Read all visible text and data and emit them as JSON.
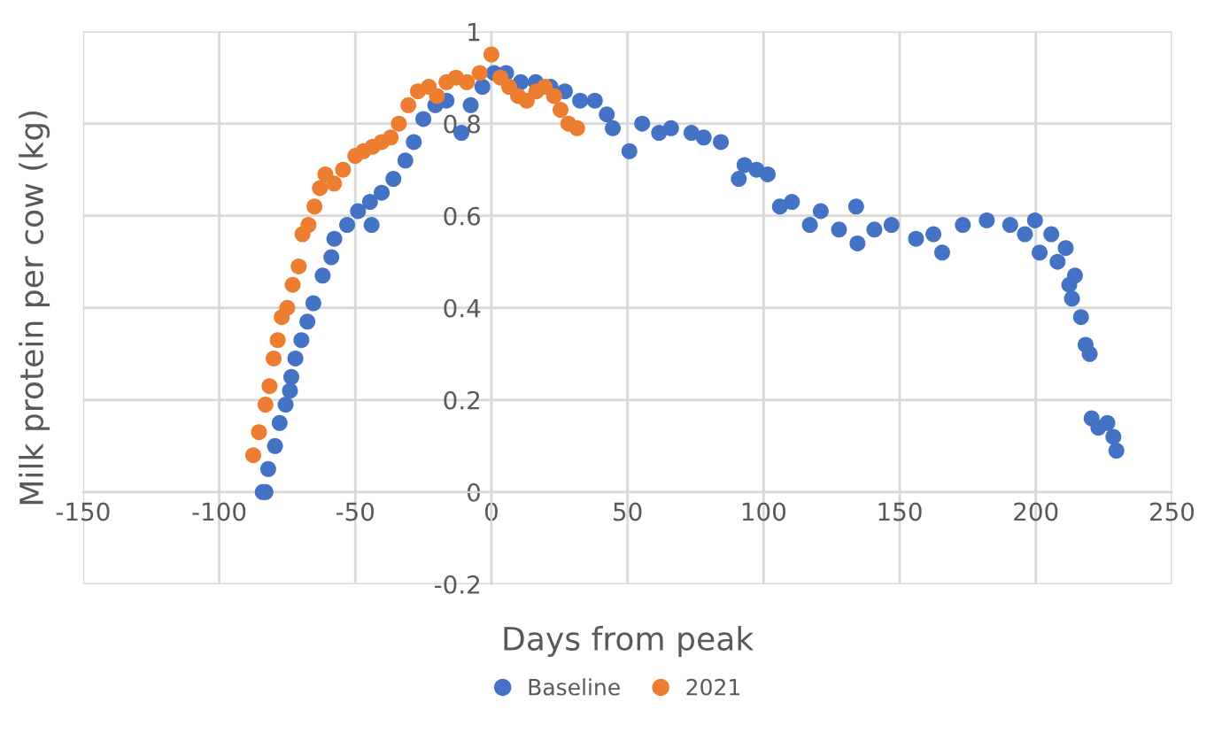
{
  "chart_data": {
    "type": "scatter",
    "xlabel": "Days from peak",
    "ylabel": "Milk protein per cow (kg)",
    "xlim": [
      -150,
      250
    ],
    "xticks": [
      -150,
      -100,
      -50,
      0,
      50,
      100,
      150,
      200,
      250
    ],
    "ylim": [
      -0.2,
      1
    ],
    "yticks": [
      -0.2,
      0,
      0.2,
      0.4,
      0.6,
      0.8,
      1
    ],
    "grid": true,
    "legend": "bottom",
    "marker": "circle",
    "series": [
      {
        "name": "Baseline",
        "color": "#4472c4",
        "x": [
          -84,
          -83,
          -82,
          -79.5,
          -77.8,
          -75.6,
          -74,
          -73.5,
          -72,
          -69.8,
          -67.6,
          -65.4,
          -62,
          -58.8,
          -57.7,
          -53,
          -49,
          -44.6,
          -44,
          -40.3,
          -36,
          -31.6,
          -28.5,
          -25,
          -20.6,
          -16.5,
          -11,
          -7.6,
          -3.3,
          1,
          5.4,
          10.8,
          16.3,
          21.7,
          27,
          32.6,
          38,
          42.4,
          44.6,
          50.7,
          55.4,
          61.6,
          66,
          73.5,
          78,
          84.3,
          90.9,
          93,
          97.4,
          101.5,
          106,
          110.4,
          117,
          121,
          127.7,
          134,
          134.5,
          140.7,
          147,
          156,
          162.4,
          165.6,
          173.2,
          182,
          190.6,
          196,
          199.7,
          201.4,
          205.7,
          208,
          211,
          212.3,
          213.3,
          214.4,
          216.6,
          218.3,
          219.8,
          220.5,
          223,
          226.3,
          228.5,
          229.6
        ],
        "values": [
          0.0,
          0.0,
          0.05,
          0.1,
          0.15,
          0.19,
          0.22,
          0.25,
          0.29,
          0.33,
          0.37,
          0.41,
          0.47,
          0.51,
          0.55,
          0.58,
          0.61,
          0.63,
          0.58,
          0.65,
          0.68,
          0.72,
          0.76,
          0.81,
          0.84,
          0.85,
          0.78,
          0.84,
          0.88,
          0.91,
          0.91,
          0.89,
          0.89,
          0.88,
          0.87,
          0.85,
          0.85,
          0.82,
          0.79,
          0.74,
          0.8,
          0.78,
          0.79,
          0.78,
          0.77,
          0.76,
          0.68,
          0.71,
          0.7,
          0.69,
          0.62,
          0.63,
          0.58,
          0.61,
          0.57,
          0.62,
          0.54,
          0.57,
          0.58,
          0.55,
          0.56,
          0.52,
          0.58,
          0.59,
          0.58,
          0.56,
          0.59,
          0.52,
          0.56,
          0.5,
          0.53,
          0.45,
          0.42,
          0.47,
          0.38,
          0.32,
          0.3,
          0.16,
          0.14,
          0.15,
          0.12,
          0.09
        ]
      },
      {
        "name": "2021",
        "color": "#ed7d31",
        "x": [
          -87.5,
          -85.4,
          -83,
          -81.5,
          -80,
          -78.5,
          -77,
          -75,
          -73,
          -70.8,
          -69.4,
          -67.2,
          -65,
          -63,
          -61,
          -57.8,
          -54.5,
          -50,
          -47,
          -43.6,
          -40.3,
          -37,
          -34,
          -30.5,
          -27,
          -23,
          -20,
          -16.5,
          -13,
          -9,
          -4.3,
          0,
          3.3,
          6.5,
          9.8,
          13,
          16.5,
          19.6,
          23,
          25.4,
          28.3,
          31.5
        ],
        "values": [
          0.08,
          0.13,
          0.19,
          0.23,
          0.29,
          0.33,
          0.38,
          0.4,
          0.45,
          0.49,
          0.56,
          0.58,
          0.62,
          0.66,
          0.69,
          0.67,
          0.7,
          0.73,
          0.74,
          0.75,
          0.76,
          0.77,
          0.8,
          0.84,
          0.87,
          0.88,
          0.86,
          0.89,
          0.9,
          0.89,
          0.91,
          0.95,
          0.9,
          0.88,
          0.86,
          0.85,
          0.87,
          0.88,
          0.86,
          0.83,
          0.8,
          0.79
        ]
      }
    ]
  }
}
